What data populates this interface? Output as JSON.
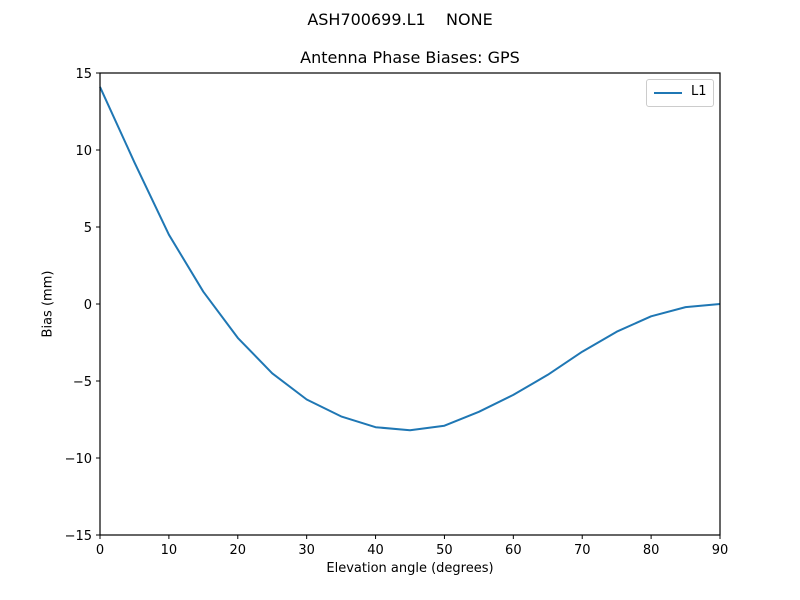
{
  "figure": {
    "suptitle": "ASH700699.L1    NONE",
    "title": "Antenna Phase Biases: GPS",
    "xlabel": "Elevation angle (degrees)",
    "ylabel": "Bias (mm)",
    "legend": {
      "label": "L1",
      "color": "#1f77b4"
    }
  },
  "chart_data": {
    "type": "line",
    "title": "Antenna Phase Biases: GPS",
    "suptitle": "ASH700699.L1    NONE",
    "xlabel": "Elevation angle (degrees)",
    "ylabel": "Bias (mm)",
    "xlim": [
      0,
      90
    ],
    "ylim": [
      -15,
      15
    ],
    "xticks": [
      0,
      10,
      20,
      30,
      40,
      50,
      60,
      70,
      80,
      90
    ],
    "yticks": [
      -15,
      -10,
      -5,
      0,
      5,
      10,
      15
    ],
    "grid": false,
    "legend_position": "upper right",
    "x": [
      0,
      5,
      10,
      15,
      20,
      25,
      30,
      35,
      40,
      45,
      50,
      55,
      60,
      65,
      70,
      75,
      80,
      85,
      90
    ],
    "series": [
      {
        "name": "L1",
        "color": "#1f77b4",
        "values": [
          14.1,
          9.2,
          4.5,
          0.8,
          -2.2,
          -4.5,
          -6.2,
          -7.3,
          -8.0,
          -8.2,
          -7.9,
          -7.0,
          -5.9,
          -4.6,
          -3.1,
          -1.8,
          -0.8,
          -0.2,
          0.0
        ]
      }
    ]
  }
}
